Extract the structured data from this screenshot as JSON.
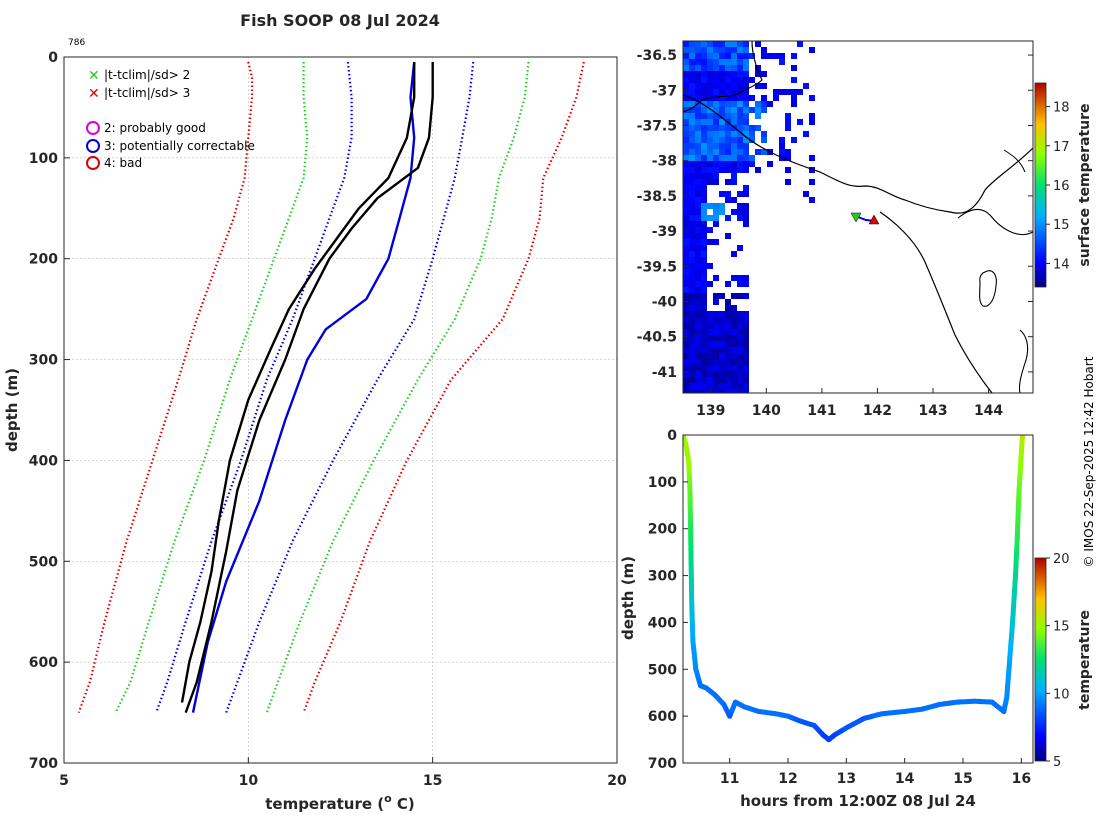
{
  "title": "Fish SOOP 08 Jul 2024",
  "profile_id": "786",
  "credit": "© IMOS 22-Sep-2025 12:42 Hobart",
  "chart_data": [
    {
      "type": "line",
      "name": "temperature-profile",
      "xlabel": "temperature (",
      "xlabel_unit": "o",
      "xlabel_end": " C)",
      "ylabel": "depth (m)",
      "xlim": [
        5,
        20
      ],
      "ylim": [
        700,
        0
      ],
      "xticks": [
        "5",
        "10",
        "15",
        "20"
      ],
      "yticks": [
        "0",
        "100",
        "200",
        "300",
        "400",
        "500",
        "600",
        "700"
      ],
      "legend": [
        {
          "marker": "x",
          "color": "#22cc22",
          "label": "|t-tclim|/sd> 2"
        },
        {
          "marker": "x",
          "color": "#dd0000",
          "label": "|t-tclim|/sd> 3"
        },
        {
          "marker": "o",
          "color": "#dd00dd",
          "label": "2: probably good"
        },
        {
          "marker": "o",
          "color": "#0000dd",
          "label": "3: potentially correctable"
        },
        {
          "marker": "o",
          "color": "#dd0000",
          "label": "4: bad"
        }
      ],
      "series": [
        {
          "name": "climatology-minus-3sd",
          "color": "#dd0000",
          "dotted": true,
          "points": [
            [
              10.0,
              5
            ],
            [
              10.1,
              20
            ],
            [
              10.1,
              40
            ],
            [
              10.0,
              80
            ],
            [
              9.9,
              120
            ],
            [
              9.6,
              160
            ],
            [
              9.2,
              200
            ],
            [
              8.6,
              260
            ],
            [
              8.1,
              320
            ],
            [
              7.4,
              400
            ],
            [
              6.7,
              480
            ],
            [
              6.1,
              560
            ],
            [
              5.7,
              620
            ],
            [
              5.4,
              650
            ]
          ]
        },
        {
          "name": "climatology-minus-2sd",
          "color": "#22cc22",
          "dotted": true,
          "points": [
            [
              11.5,
              5
            ],
            [
              11.5,
              40
            ],
            [
              11.6,
              80
            ],
            [
              11.5,
              120
            ],
            [
              11.1,
              160
            ],
            [
              10.7,
              200
            ],
            [
              10.1,
              260
            ],
            [
              9.5,
              320
            ],
            [
              8.8,
              400
            ],
            [
              8.0,
              480
            ],
            [
              7.3,
              560
            ],
            [
              6.8,
              620
            ],
            [
              6.4,
              650
            ]
          ]
        },
        {
          "name": "climatology-minus-1sd",
          "color": "#0000dd",
          "dotted": true,
          "points": [
            [
              12.7,
              5
            ],
            [
              12.8,
              40
            ],
            [
              12.8,
              80
            ],
            [
              12.6,
              120
            ],
            [
              12.2,
              160
            ],
            [
              11.8,
              200
            ],
            [
              11.2,
              260
            ],
            [
              10.5,
              320
            ],
            [
              9.8,
              400
            ],
            [
              9.0,
              480
            ],
            [
              8.3,
              560
            ],
            [
              7.8,
              620
            ],
            [
              7.5,
              650
            ]
          ]
        },
        {
          "name": "climatology-plus-1sd",
          "color": "#0000dd",
          "dotted": true,
          "points": [
            [
              16.1,
              5
            ],
            [
              16.0,
              40
            ],
            [
              15.8,
              80
            ],
            [
              15.6,
              120
            ],
            [
              15.3,
              160
            ],
            [
              15.0,
              200
            ],
            [
              14.5,
              260
            ],
            [
              13.5,
              320
            ],
            [
              12.3,
              400
            ],
            [
              11.2,
              480
            ],
            [
              10.3,
              560
            ],
            [
              9.7,
              620
            ],
            [
              9.4,
              650
            ]
          ]
        },
        {
          "name": "climatology-plus-2sd",
          "color": "#22cc22",
          "dotted": true,
          "points": [
            [
              17.6,
              5
            ],
            [
              17.5,
              40
            ],
            [
              17.2,
              80
            ],
            [
              16.8,
              120
            ],
            [
              16.6,
              160
            ],
            [
              16.3,
              200
            ],
            [
              15.6,
              260
            ],
            [
              14.6,
              320
            ],
            [
              13.4,
              400
            ],
            [
              12.3,
              480
            ],
            [
              11.4,
              560
            ],
            [
              10.8,
              620
            ],
            [
              10.5,
              650
            ]
          ]
        },
        {
          "name": "climatology-plus-3sd",
          "color": "#dd0000",
          "dotted": true,
          "points": [
            [
              19.1,
              5
            ],
            [
              18.9,
              40
            ],
            [
              18.5,
              80
            ],
            [
              18.0,
              120
            ],
            [
              17.9,
              160
            ],
            [
              17.6,
              200
            ],
            [
              16.9,
              260
            ],
            [
              15.5,
              320
            ],
            [
              14.3,
              400
            ],
            [
              13.3,
              480
            ],
            [
              12.5,
              560
            ],
            [
              11.8,
              620
            ],
            [
              11.5,
              650
            ]
          ]
        },
        {
          "name": "climatology-mean",
          "color": "#0000dd",
          "dotted": false,
          "points": [
            [
              14.5,
              5
            ],
            [
              14.4,
              40
            ],
            [
              14.5,
              80
            ],
            [
              14.4,
              120
            ],
            [
              14.1,
              160
            ],
            [
              13.8,
              200
            ],
            [
              13.2,
              240
            ],
            [
              12.1,
              270
            ],
            [
              11.6,
              300
            ],
            [
              11.0,
              360
            ],
            [
              10.3,
              440
            ],
            [
              9.4,
              520
            ],
            [
              8.9,
              580
            ],
            [
              8.5,
              650
            ]
          ]
        },
        {
          "name": "observed-profile-downcast",
          "color": "#000000",
          "dotted": false,
          "points": [
            [
              14.5,
              5
            ],
            [
              14.5,
              40
            ],
            [
              14.3,
              80
            ],
            [
              13.8,
              120
            ],
            [
              13.0,
              150
            ],
            [
              12.4,
              180
            ],
            [
              11.8,
              210
            ],
            [
              11.1,
              250
            ],
            [
              10.6,
              290
            ],
            [
              10.0,
              340
            ],
            [
              9.5,
              400
            ],
            [
              9.2,
              460
            ],
            [
              9.0,
              510
            ],
            [
              8.7,
              560
            ],
            [
              8.4,
              600
            ],
            [
              8.2,
              640
            ]
          ]
        },
        {
          "name": "observed-profile-upcast",
          "color": "#000000",
          "dotted": false,
          "points": [
            [
              15.0,
              5
            ],
            [
              15.0,
              40
            ],
            [
              14.9,
              80
            ],
            [
              14.6,
              110
            ],
            [
              13.5,
              140
            ],
            [
              12.8,
              170
            ],
            [
              12.2,
              200
            ],
            [
              11.5,
              250
            ],
            [
              11.0,
              300
            ],
            [
              10.3,
              360
            ],
            [
              9.7,
              430
            ],
            [
              9.4,
              490
            ],
            [
              9.0,
              560
            ],
            [
              8.6,
              620
            ],
            [
              8.3,
              650
            ]
          ]
        }
      ]
    },
    {
      "type": "heatmap",
      "name": "surface-temperature-map",
      "xlim": [
        138.5,
        144.8
      ],
      "ylim": [
        -41.3,
        -36.3
      ],
      "xticks": [
        "139",
        "140",
        "141",
        "142",
        "143",
        "144"
      ],
      "yticks": [
        "-36.5",
        "-37",
        "-37.5",
        "-38",
        "-38.5",
        "-39",
        "-39.5",
        "-40",
        "-40.5",
        "-41"
      ],
      "colorbar_label": "surface temperature",
      "colorbar_range": [
        13.4,
        18.6
      ],
      "colorbar_ticks": [
        "14",
        "15",
        "16",
        "17",
        "18"
      ],
      "start_marker": {
        "lon": 141.6,
        "lat": -38.8,
        "shape": "triangle-down",
        "color": "#22cc22"
      },
      "end_marker": {
        "lon": 141.9,
        "lat": -38.85,
        "shape": "triangle-up",
        "color": "#dd0000"
      }
    },
    {
      "type": "scatter",
      "name": "depth-time-track",
      "xlabel": "hours from 12:00Z 08 Jul 24",
      "ylabel": "depth (m)",
      "xlim": [
        10.2,
        16.2
      ],
      "ylim": [
        700,
        0
      ],
      "xticks": [
        "11",
        "12",
        "13",
        "14",
        "15",
        "16"
      ],
      "yticks": [
        "0",
        "100",
        "200",
        "300",
        "400",
        "500",
        "600",
        "700"
      ],
      "colorbar_label": "temperature",
      "colorbar_range": [
        5,
        20
      ],
      "colorbar_ticks": [
        "5",
        "10",
        "15",
        "20"
      ],
      "points": [
        [
          10.2,
          0,
          15
        ],
        [
          10.25,
          20,
          15
        ],
        [
          10.3,
          60,
          15
        ],
        [
          10.32,
          120,
          14
        ],
        [
          10.33,
          200,
          13
        ],
        [
          10.34,
          280,
          12
        ],
        [
          10.35,
          360,
          11
        ],
        [
          10.37,
          440,
          10
        ],
        [
          10.42,
          500,
          9.5
        ],
        [
          10.5,
          535,
          9
        ],
        [
          10.6,
          540,
          9
        ],
        [
          10.75,
          555,
          9
        ],
        [
          10.9,
          575,
          9
        ],
        [
          11.0,
          600,
          8.5
        ],
        [
          11.05,
          585,
          9
        ],
        [
          11.1,
          570,
          9
        ],
        [
          11.25,
          580,
          9
        ],
        [
          11.5,
          590,
          9
        ],
        [
          11.8,
          595,
          9
        ],
        [
          12.0,
          600,
          9
        ],
        [
          12.2,
          610,
          8.5
        ],
        [
          12.45,
          620,
          8.5
        ],
        [
          12.6,
          640,
          8
        ],
        [
          12.7,
          650,
          8
        ],
        [
          12.8,
          640,
          8
        ],
        [
          13.0,
          625,
          8.5
        ],
        [
          13.3,
          605,
          8.5
        ],
        [
          13.6,
          595,
          9
        ],
        [
          14.0,
          590,
          9
        ],
        [
          14.3,
          585,
          9
        ],
        [
          14.6,
          575,
          9
        ],
        [
          14.9,
          570,
          9
        ],
        [
          15.2,
          568,
          9
        ],
        [
          15.5,
          570,
          9
        ],
        [
          15.65,
          585,
          9
        ],
        [
          15.7,
          590,
          9
        ],
        [
          15.75,
          560,
          9.5
        ],
        [
          15.8,
          480,
          10
        ],
        [
          15.85,
          400,
          11
        ],
        [
          15.9,
          300,
          12
        ],
        [
          15.93,
          220,
          13
        ],
        [
          15.96,
          120,
          14
        ],
        [
          16.0,
          40,
          15
        ],
        [
          16.02,
          0,
          15.5
        ]
      ]
    }
  ]
}
